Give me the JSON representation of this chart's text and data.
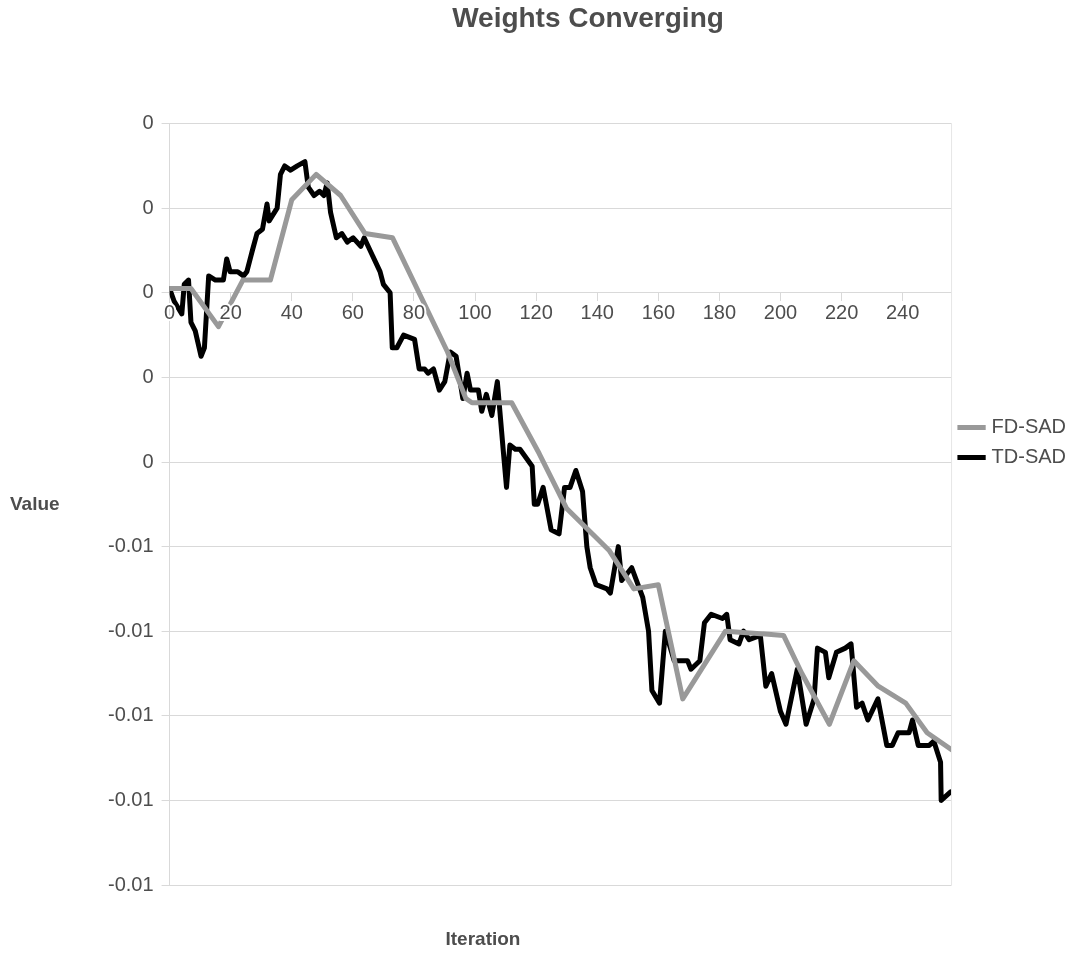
{
  "chart_data": {
    "type": "line",
    "title": "Weights Converging",
    "xlabel": "Iteration",
    "ylabel": "Value",
    "xlim": [
      0,
      256
    ],
    "xticks": [
      0,
      20,
      40,
      60,
      80,
      100,
      120,
      140,
      160,
      180,
      200,
      220,
      240
    ],
    "ylim": [
      -0.014,
      0.004
    ],
    "yticks": [
      {
        "value": 0.004,
        "label": "0"
      },
      {
        "value": 0.002,
        "label": "0"
      },
      {
        "value": 0,
        "label": "0"
      },
      {
        "value": -0.002,
        "label": "0"
      },
      {
        "value": -0.004,
        "label": "0"
      },
      {
        "value": -0.006,
        "label": "-0.01"
      },
      {
        "value": -0.008,
        "label": "-0.01"
      },
      {
        "value": -0.01,
        "label": "-0.01"
      },
      {
        "value": -0.012,
        "label": "-0.01"
      },
      {
        "value": -0.014,
        "label": "-0.01"
      }
    ],
    "grid": "y",
    "legend": "right",
    "marker": "none",
    "line_style": "solid",
    "series": [
      {
        "name": "FD-SAD",
        "color": "#999999",
        "x": [
          0,
          7,
          16,
          24,
          33,
          40,
          48,
          56,
          64,
          73,
          91,
          97,
          99,
          112,
          121,
          130,
          144,
          152,
          160,
          168,
          182,
          201,
          207,
          216,
          224,
          232,
          241,
          248,
          256
        ],
        "values": [
          0.0001,
          0.0001,
          -0.0008,
          0.0003,
          0.0003,
          0.0022,
          0.0028,
          0.0023,
          0.0014,
          0.0013,
          -0.0014,
          -0.0025,
          -0.0026,
          -0.0026,
          -0.0038,
          -0.0051,
          -0.0061,
          -0.007,
          -0.0069,
          -0.0096,
          -0.008,
          -0.0081,
          -0.009,
          -0.0102,
          -0.0087,
          -0.0093,
          -0.0097,
          -0.0104,
          -0.0108
        ]
      },
      {
        "name": "TD-SAD",
        "color": "#000000",
        "x": [
          0,
          1.5,
          4,
          4.8,
          6.2,
          7,
          8.4,
          10.3,
          11.4,
          12.8,
          15,
          17.6,
          18.7,
          19.8,
          22.3,
          24.2,
          25.3,
          27.1,
          28.6,
          30.4,
          31.9,
          32.6,
          35.2,
          36.3,
          37.7,
          39.6,
          41.8,
          44.3,
          45.4,
          47.3,
          49.1,
          50.5,
          51.6,
          52.7,
          54.6,
          56.4,
          58.2,
          60.1,
          62.6,
          63.7,
          66.3,
          68.9,
          70,
          72.2,
          72.9,
          74.4,
          76.6,
          80.2,
          81.7,
          83.5,
          84.6,
          86.4,
          88.3,
          90.1,
          91.9,
          93.8,
          96,
          97.4,
          98.5,
          101.1,
          102.2,
          103.7,
          105.5,
          107.3,
          109.2,
          110.3,
          111.4,
          113.2,
          114.7,
          118.7,
          119.4,
          120.5,
          122.3,
          124.9,
          127.5,
          129.3,
          131.1,
          133,
          135.2,
          136.6,
          137.7,
          139.6,
          143.2,
          144.3,
          146.9,
          148,
          151.3,
          154.9,
          156.8,
          157.9,
          160.4,
          162.3,
          165.2,
          169.6,
          170.7,
          173.6,
          175.1,
          177.3,
          181,
          182.4,
          183.5,
          186.4,
          187.9,
          189.7,
          193.4,
          195.2,
          197.1,
          200,
          201.8,
          205.5,
          208.4,
          211,
          212.1,
          214.7,
          215.8,
          218.3,
          221.2,
          223.1,
          224.9,
          226.7,
          228.6,
          231.9,
          234.8,
          236.6,
          238.5,
          242.1,
          243.2,
          245.1,
          248.7,
          250.2,
          252.4,
          252.6,
          255.7
        ],
        "values": [
          0.0001,
          -0.0002,
          -0.0005,
          0.0002,
          0.0003,
          -0.0007,
          -0.0009,
          -0.0015,
          -0.0013,
          0.0004,
          0.0003,
          0.0003,
          0.0008,
          0.0005,
          0.0005,
          0.0004,
          0.0005,
          0.001,
          0.0014,
          0.0015,
          0.0021,
          0.0017,
          0.002,
          0.0028,
          0.003,
          0.0029,
          0.003,
          0.0031,
          0.0025,
          0.0023,
          0.0024,
          0.0023,
          0.0026,
          0.0019,
          0.0013,
          0.0014,
          0.0012,
          0.0013,
          0.0011,
          0.0013,
          0.0009,
          0.0005,
          0.0002,
          0,
          -0.0013,
          -0.0013,
          -0.001,
          -0.0011,
          -0.0018,
          -0.0018,
          -0.0019,
          -0.0018,
          -0.0023,
          -0.0021,
          -0.0014,
          -0.0015,
          -0.0025,
          -0.0019,
          -0.0023,
          -0.0023,
          -0.0028,
          -0.0024,
          -0.0029,
          -0.0021,
          -0.0037,
          -0.0046,
          -0.0036,
          -0.0037,
          -0.0037,
          -0.0041,
          -0.005,
          -0.005,
          -0.0046,
          -0.0056,
          -0.0057,
          -0.0046,
          -0.0046,
          -0.0042,
          -0.0047,
          -0.006,
          -0.0065,
          -0.0069,
          -0.007,
          -0.0071,
          -0.006,
          -0.0068,
          -0.0065,
          -0.0072,
          -0.008,
          -0.0094,
          -0.0097,
          -0.008,
          -0.0087,
          -0.0087,
          -0.0089,
          -0.0087,
          -0.0078,
          -0.0076,
          -0.0077,
          -0.0076,
          -0.0082,
          -0.0083,
          -0.008,
          -0.0082,
          -0.0081,
          -0.0093,
          -0.009,
          -0.0099,
          -0.0102,
          -0.0089,
          -0.0102,
          -0.0096,
          -0.0084,
          -0.0085,
          -0.0091,
          -0.0085,
          -0.0084,
          -0.0083,
          -0.0098,
          -0.0097,
          -0.0101,
          -0.0096,
          -0.0107,
          -0.0107,
          -0.0104,
          -0.0104,
          -0.0101,
          -0.0107,
          -0.0107,
          -0.0106,
          -0.0111,
          -0.012,
          -0.0118
        ]
      }
    ]
  }
}
